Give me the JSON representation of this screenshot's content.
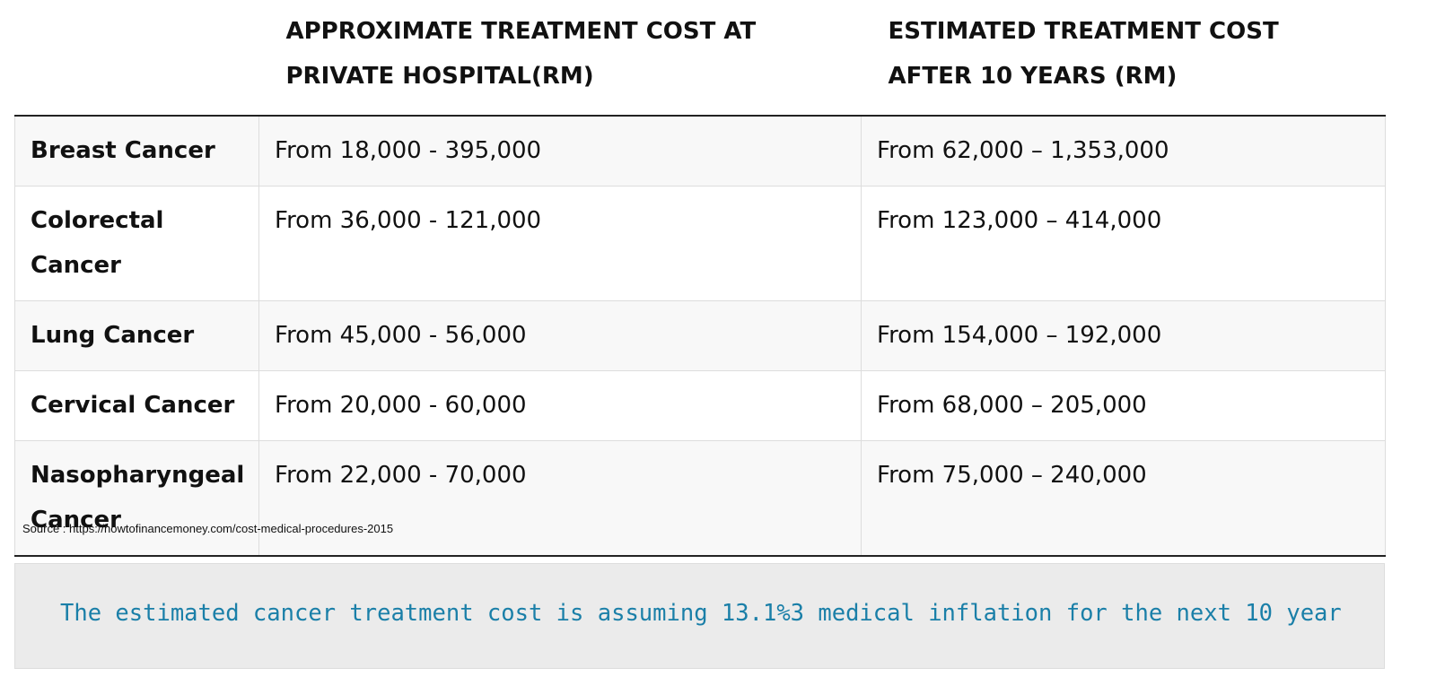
{
  "table": {
    "header": [
      "APPROXIMATE TREATMENT COST AT PRIVATE HOSPITAL(RM)",
      "ESTIMATED TREATMENT COST AFTER 10 YEARS (RM)"
    ],
    "rows": [
      [
        "Breast Cancer",
        "From 18,000 - 395,000",
        "From 62,000 – 1,353,000"
      ],
      [
        "Colorectal Cancer",
        "From 36,000 - 121,000",
        "From 123,000 – 414,000"
      ],
      [
        "Lung Cancer",
        "From 45,000 - 56,000",
        "From 154,000 – 192,000"
      ],
      [
        "Cervical Cancer",
        "From 20,000 - 60,000",
        "From 68,000 – 205,000"
      ],
      [
        "Nasopharyngeal Cancer",
        "From 22,000 - 70,000",
        "From 75,000 – 240,000"
      ]
    ]
  },
  "source": "Source : https://howtofinancemoney.com/cost-medical-procedures-2015",
  "note": "The estimated cancer treatment cost is assuming 13.1%3 medical inflation for the next 10 year"
}
